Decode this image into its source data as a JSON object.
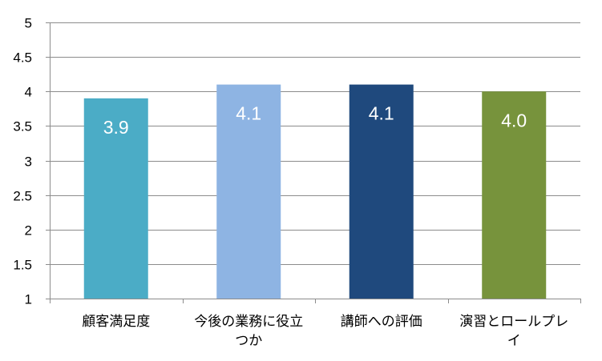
{
  "chart_data": {
    "type": "bar",
    "title": "",
    "xlabel": "",
    "ylabel": "",
    "categories": [
      [
        "顧客満足度"
      ],
      [
        "今後の業務に役立",
        "つか"
      ],
      [
        "講師への評価"
      ],
      [
        "演習とロールプレ",
        "イ"
      ]
    ],
    "values": [
      3.9,
      4.1,
      4.1,
      4.0
    ],
    "data_labels": [
      "3.9",
      "4.1",
      "4.1",
      "4.0"
    ],
    "bar_colors": [
      "#4bacc6",
      "#8eb4e3",
      "#1f497d",
      "#77933c"
    ],
    "ylim": [
      1,
      5
    ],
    "yticks": [
      1,
      1.5,
      2,
      2.5,
      3,
      3.5,
      4,
      4.5,
      5
    ],
    "ytick_labels": [
      "1",
      "1.5",
      "2",
      "2.5",
      "3",
      "3.5",
      "4",
      "4.5",
      "5"
    ],
    "grid": true,
    "legend": "none"
  }
}
